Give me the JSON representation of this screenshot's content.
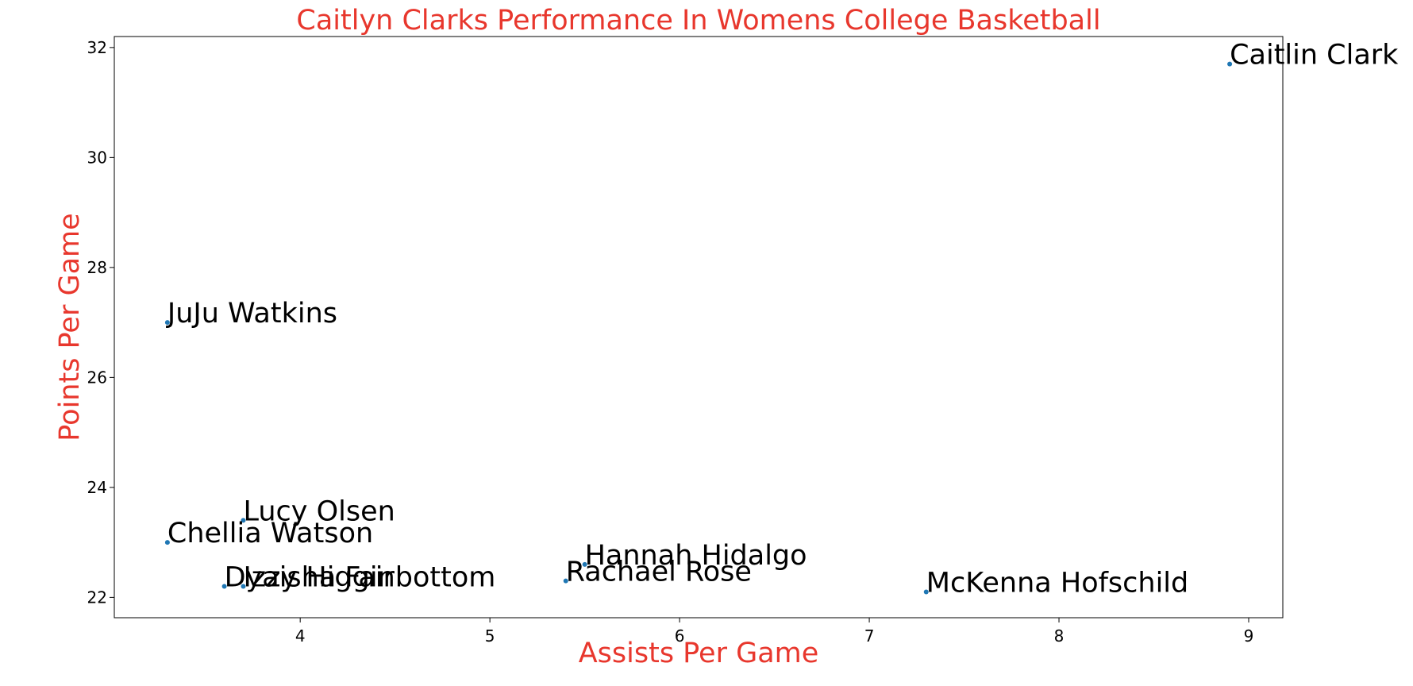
{
  "chart_data": {
    "type": "scatter",
    "title": "Caitlyn Clarks Performance In Womens College Basketball",
    "xlabel": "Assists Per Game",
    "ylabel": "Points Per Game",
    "xlim": [
      3.02,
      9.18
    ],
    "ylim": [
      21.63,
      32.2
    ],
    "xticks": [
      4,
      5,
      6,
      7,
      8,
      9
    ],
    "yticks": [
      22,
      24,
      26,
      28,
      30,
      32
    ],
    "grid": false,
    "points": [
      {
        "label": "Caitlin Clark",
        "x": 8.9,
        "y": 31.7
      },
      {
        "label": "JuJu Watkins",
        "x": 3.3,
        "y": 27.0
      },
      {
        "label": "Lucy Olsen",
        "x": 3.7,
        "y": 23.4
      },
      {
        "label": "Chellia Watson",
        "x": 3.3,
        "y": 23.0
      },
      {
        "label": "Hannah Hidalgo",
        "x": 5.5,
        "y": 22.6
      },
      {
        "label": "Rachael Rose",
        "x": 5.4,
        "y": 22.3
      },
      {
        "label": "Dyaisha Fair",
        "x": 3.6,
        "y": 22.2
      },
      {
        "label": "Izzy Higginbottom",
        "x": 3.7,
        "y": 22.2
      },
      {
        "label": "McKenna Hofschild",
        "x": 7.3,
        "y": 22.1
      }
    ]
  },
  "colors": {
    "title": "#e8372d",
    "axis_label": "#e8372d",
    "marker": "#1f77b4",
    "axes": "#000000"
  }
}
